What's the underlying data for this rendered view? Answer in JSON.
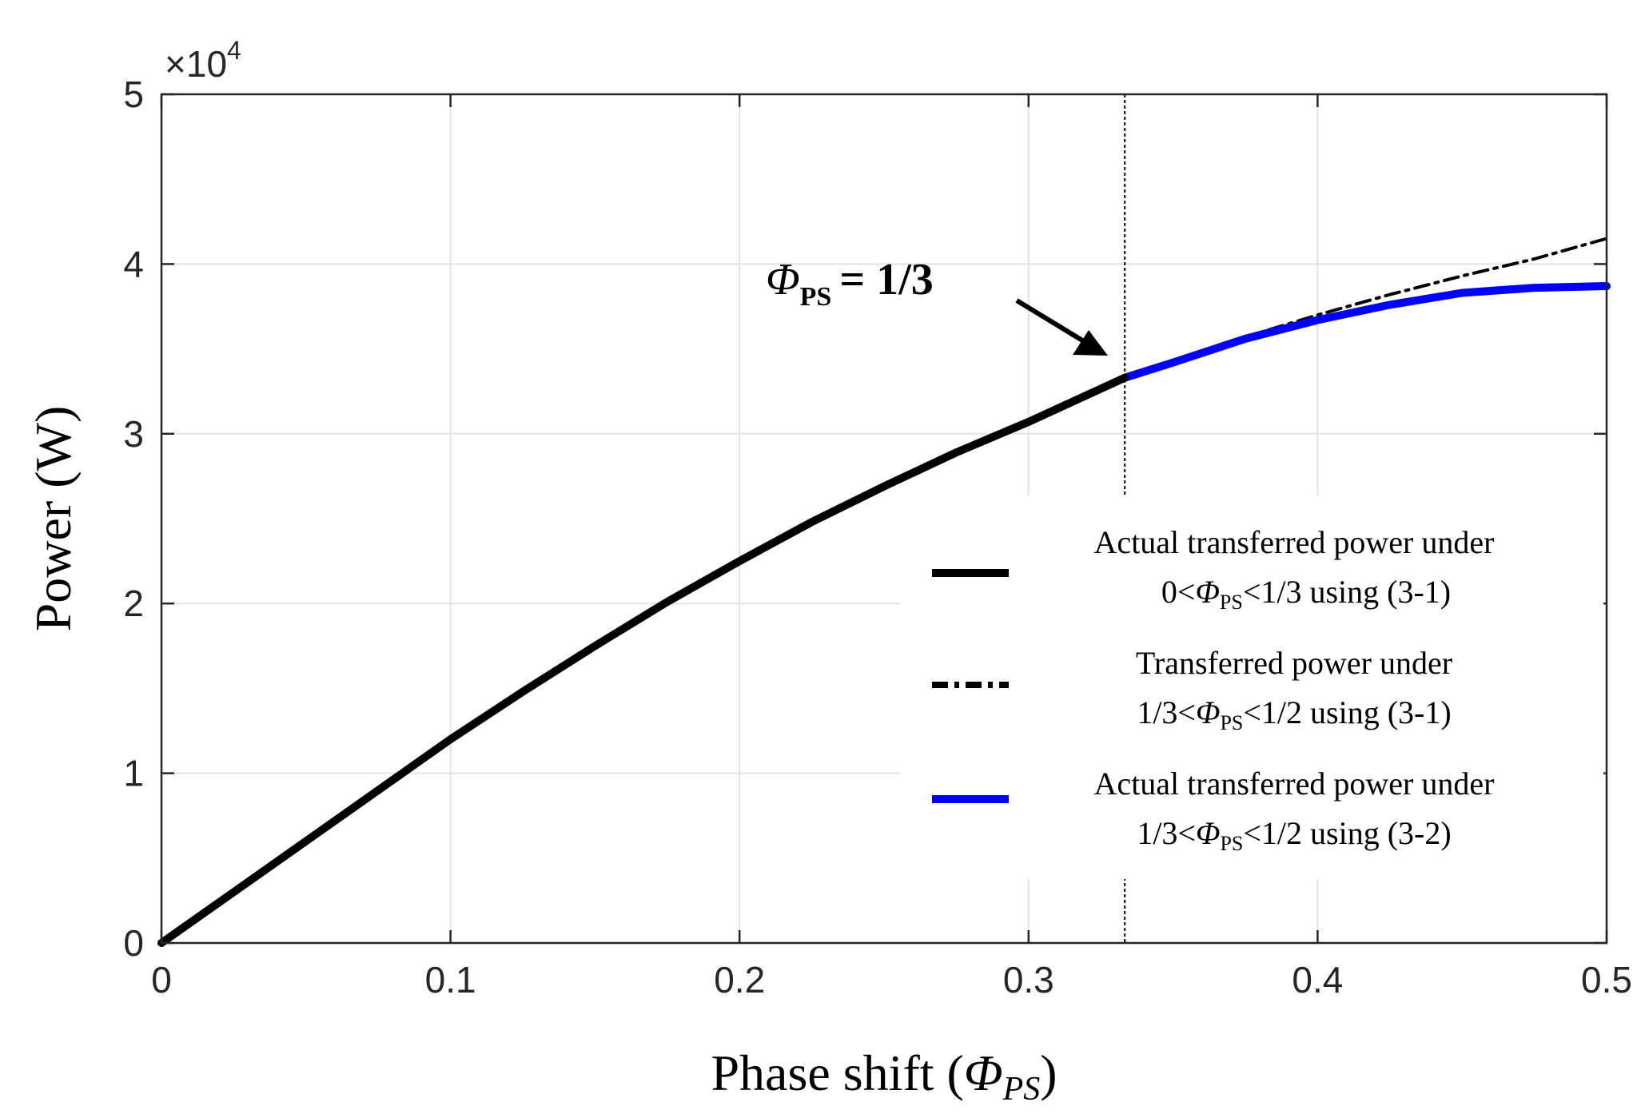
{
  "chart_data": {
    "type": "line",
    "xlabel": "Phase shift",
    "xlabel_symbol": "Φ",
    "xlabel_subscript": "PS",
    "ylabel": "Power (W)",
    "y_multiplier": "×10",
    "y_multiplier_exp": "4",
    "xlim": [
      0,
      0.5
    ],
    "ylim": [
      0,
      5
    ],
    "x_ticks": [
      0,
      0.1,
      0.2,
      0.3,
      0.4,
      0.5
    ],
    "x_tick_labels": [
      "0",
      "0.1",
      "0.2",
      "0.3",
      "0.4",
      "0.5"
    ],
    "y_ticks": [
      0,
      1,
      2,
      3,
      4,
      5
    ],
    "y_tick_labels": [
      "0",
      "1",
      "2",
      "3",
      "4",
      "5"
    ],
    "grid": true,
    "vline_x": 0.3333,
    "annotation": {
      "symbol": "Φ",
      "subscript": "PS",
      "text": "= 1/3",
      "points_to": [
        0.3333,
        3.33
      ]
    },
    "series": [
      {
        "name": "Actual transferred power under 0<ΦPS<1/3 using (3-1)",
        "color": "#000000",
        "style": "solid",
        "x": [
          0,
          0.025,
          0.05,
          0.075,
          0.1,
          0.125,
          0.15,
          0.175,
          0.2,
          0.225,
          0.25,
          0.275,
          0.3,
          0.3333
        ],
        "y": [
          0,
          0.3,
          0.6,
          0.9,
          1.2,
          1.48,
          1.75,
          2.01,
          2.25,
          2.48,
          2.69,
          2.89,
          3.07,
          3.33
        ]
      },
      {
        "name": "Transferred power under 1/3<ΦPS<1/2 using (3-1)",
        "color": "#000000",
        "style": "dashdot",
        "x": [
          0.3333,
          0.35,
          0.375,
          0.4,
          0.425,
          0.45,
          0.475,
          0.5
        ],
        "y": [
          3.33,
          3.43,
          3.57,
          3.7,
          3.82,
          3.93,
          4.03,
          4.15
        ]
      },
      {
        "name": "Actual transferred power under 1/3<ΦPS<1/2 using (3-2)",
        "color": "#0000ff",
        "style": "solid",
        "x": [
          0.3333,
          0.35,
          0.375,
          0.4,
          0.425,
          0.45,
          0.475,
          0.5
        ],
        "y": [
          3.33,
          3.42,
          3.56,
          3.67,
          3.76,
          3.83,
          3.86,
          3.87
        ]
      }
    ],
    "legend": {
      "placement": "lower-right",
      "entries": [
        {
          "line1": "Actual transferred power  under",
          "line2_pre": "0<",
          "line2_sym": "Φ",
          "line2_sub": "PS",
          "line2_post": "<1/3 using (3-1)"
        },
        {
          "line1": "Transferred power  under",
          "line2_pre": "1/3<",
          "line2_sym": "Φ",
          "line2_sub": "PS",
          "line2_post": "<1/2 using (3-1)"
        },
        {
          "line1": "Actual transferred power  under",
          "line2_pre": "1/3<",
          "line2_sym": "Φ",
          "line2_sub": "PS",
          "line2_post": "<1/2 using (3-2)"
        }
      ]
    }
  }
}
